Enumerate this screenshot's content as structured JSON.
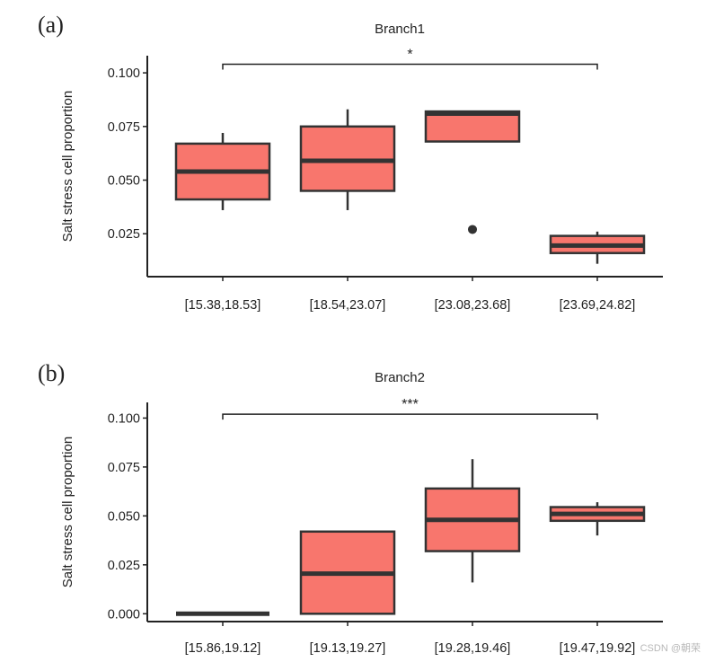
{
  "watermark": "CSDN @朝荣",
  "chart_data": [
    {
      "type": "boxplot",
      "panel_letter": "(a)",
      "title": "Branch1",
      "ylabel": "Salt stress cell proportion",
      "xlabel": "",
      "ylim": [
        0.005,
        0.108
      ],
      "yticks": [
        0.025,
        0.05,
        0.075,
        0.1
      ],
      "ytick_labels": [
        "0.025",
        "0.050",
        "0.075",
        "0.100"
      ],
      "categories": [
        "[15.38,18.53]",
        "[18.54,23.07]",
        "[23.08,23.68]",
        "[23.69,24.82]"
      ],
      "boxes": [
        {
          "whisker_low": 0.036,
          "q1": 0.041,
          "median": 0.054,
          "q3": 0.067,
          "whisker_high": 0.072,
          "outliers": []
        },
        {
          "whisker_low": 0.036,
          "q1": 0.045,
          "median": 0.059,
          "q3": 0.075,
          "whisker_high": 0.083,
          "outliers": []
        },
        {
          "whisker_low": 0.068,
          "q1": 0.068,
          "median": 0.081,
          "q3": 0.082,
          "whisker_high": 0.082,
          "outliers": [
            0.027
          ]
        },
        {
          "whisker_low": 0.011,
          "q1": 0.016,
          "median": 0.0195,
          "q3": 0.024,
          "whisker_high": 0.026,
          "outliers": []
        }
      ],
      "significance": {
        "from": 0,
        "to": 3,
        "label": "*",
        "y": 0.104
      },
      "box_color": "#f8766d",
      "line_color": "#333333",
      "grid": false
    },
    {
      "type": "boxplot",
      "panel_letter": "(b)",
      "title": "Branch2",
      "ylabel": "Salt stress cell proportion",
      "xlabel": "",
      "ylim": [
        -0.004,
        0.108
      ],
      "yticks": [
        0.0,
        0.025,
        0.05,
        0.075,
        0.1
      ],
      "ytick_labels": [
        "0.000",
        "0.025",
        "0.050",
        "0.075",
        "0.100"
      ],
      "categories": [
        "[15.86,19.12]",
        "[19.13,19.27]",
        "[19.28,19.46]",
        "[19.47,19.92]"
      ],
      "boxes": [
        {
          "whisker_low": 0.0,
          "q1": 0.0,
          "median": 0.0,
          "q3": 0.0,
          "whisker_high": 0.0,
          "outliers": []
        },
        {
          "whisker_low": 0.0,
          "q1": 0.0,
          "median": 0.0205,
          "q3": 0.042,
          "whisker_high": 0.042,
          "outliers": []
        },
        {
          "whisker_low": 0.016,
          "q1": 0.032,
          "median": 0.048,
          "q3": 0.064,
          "whisker_high": 0.079,
          "outliers": []
        },
        {
          "whisker_low": 0.04,
          "q1": 0.0475,
          "median": 0.051,
          "q3": 0.0545,
          "whisker_high": 0.057,
          "outliers": []
        }
      ],
      "significance": {
        "from": 0,
        "to": 3,
        "label": "***",
        "y": 0.102
      },
      "box_color": "#f8766d",
      "line_color": "#333333",
      "grid": false
    }
  ]
}
